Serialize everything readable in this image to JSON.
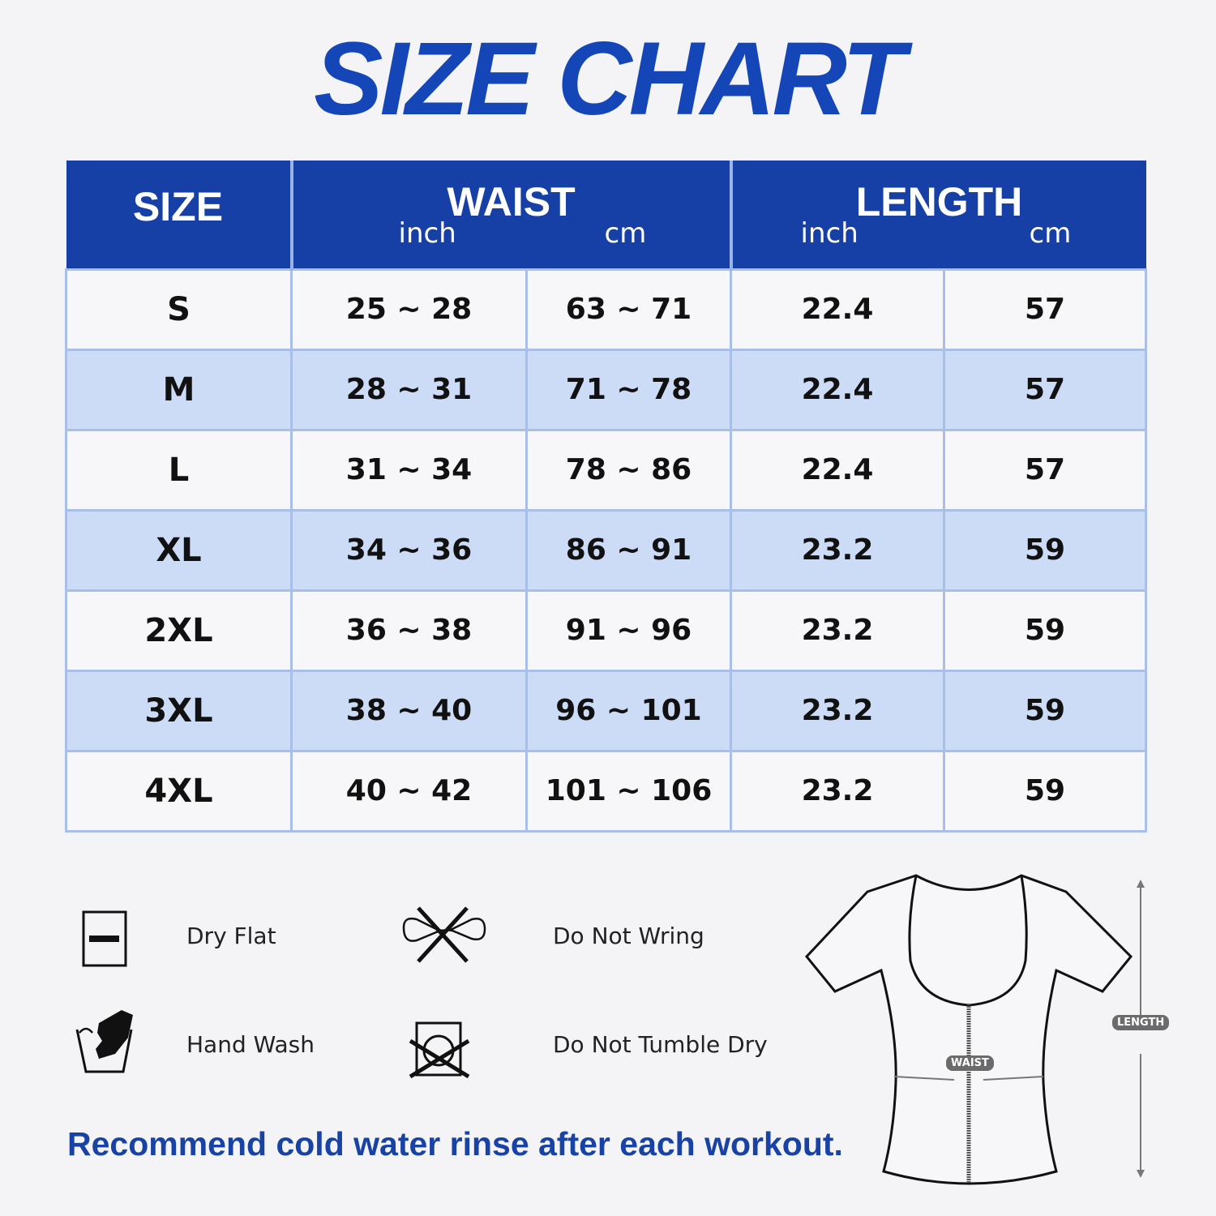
{
  "title": "SIZE CHART",
  "table": {
    "headers": {
      "size": "SIZE",
      "waist": "WAIST",
      "length": "LENGTH",
      "inch": "inch",
      "cm": "cm"
    },
    "rows": [
      {
        "size": "S",
        "waist_inch": "25 ~ 28",
        "waist_cm": "63 ~ 71",
        "length_inch": "22.4",
        "length_cm": "57"
      },
      {
        "size": "M",
        "waist_inch": "28 ~ 31",
        "waist_cm": "71 ~ 78",
        "length_inch": "22.4",
        "length_cm": "57"
      },
      {
        "size": "L",
        "waist_inch": "31 ~ 34",
        "waist_cm": "78 ~ 86",
        "length_inch": "22.4",
        "length_cm": "57"
      },
      {
        "size": "XL",
        "waist_inch": "34 ~ 36",
        "waist_cm": "86 ~ 91",
        "length_inch": "23.2",
        "length_cm": "59"
      },
      {
        "size": "2XL",
        "waist_inch": "36 ~ 38",
        "waist_cm": "91 ~ 96",
        "length_inch": "23.2",
        "length_cm": "59"
      },
      {
        "size": "3XL",
        "waist_inch": "38 ~ 40",
        "waist_cm": "96 ~ 101",
        "length_inch": "23.2",
        "length_cm": "59"
      },
      {
        "size": "4XL",
        "waist_inch": "40 ~ 42",
        "waist_cm": "101 ~ 106",
        "length_inch": "23.2",
        "length_cm": "59"
      }
    ]
  },
  "care": [
    {
      "label": "Dry Flat",
      "icon": "dry-flat-icon"
    },
    {
      "label": "Do Not Wring",
      "icon": "do-not-wring-icon"
    },
    {
      "label": "Hand Wash",
      "icon": "hand-wash-icon"
    },
    {
      "label": "Do Not Tumble Dry",
      "icon": "do-not-tumble-dry-icon"
    }
  ],
  "note": "Recommend cold water rinse after each workout.",
  "diagram": {
    "waist_label": "WAIST",
    "length_label": "LENGTH"
  },
  "colors": {
    "header": "#1740a6",
    "alt_row": "#cddcf6",
    "title": "#1546b8"
  }
}
